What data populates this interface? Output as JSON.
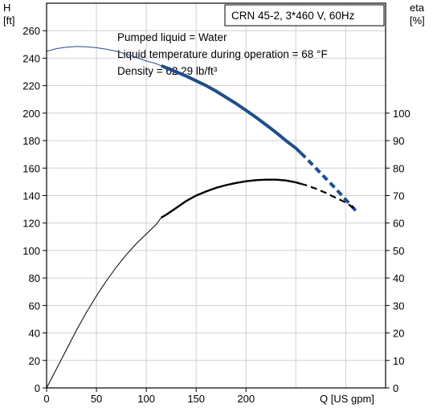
{
  "chart_data": {
    "type": "line",
    "left_axis": {
      "symbol": "H",
      "unit": "[ft]",
      "range": [
        0,
        280
      ],
      "ticks": [
        0,
        20,
        40,
        60,
        80,
        100,
        120,
        140,
        160,
        180,
        200,
        220,
        240,
        260
      ]
    },
    "right_axis": {
      "symbol": "eta",
      "unit": "[%]",
      "range": [
        0,
        140
      ],
      "ticks": [
        0,
        10,
        20,
        30,
        40,
        50,
        60,
        70,
        80,
        90,
        100
      ]
    },
    "x_axis": {
      "label": "Q [US gpm]",
      "range": [
        0,
        340
      ],
      "ticks": [
        0,
        50,
        100,
        150,
        200
      ]
    },
    "grid": true,
    "title_box": "CRN 45-2, 3*460 V, 60Hz",
    "annotations": [
      "Pumped liquid = Water",
      "Liquid temperature during operation = 68 °F",
      "Density = 62.29 lb/ft³"
    ],
    "series": [
      {
        "axis": "left",
        "color": "#1f4e8c",
        "thin_end_x": 115,
        "dash_start_x": 255,
        "x": [
          0,
          10,
          20,
          30,
          40,
          50,
          60,
          70,
          80,
          90,
          100,
          110,
          115,
          120,
          130,
          140,
          150,
          160,
          170,
          180,
          190,
          200,
          210,
          220,
          230,
          240,
          250,
          255,
          260,
          270,
          280,
          290,
          300,
          310
        ],
        "y": [
          245,
          247,
          248,
          248.5,
          248.3,
          247.6,
          246.5,
          245,
          243,
          240.5,
          238,
          236,
          234.5,
          233,
          230,
          227,
          223.5,
          220,
          216,
          211.5,
          207,
          202,
          197,
          191.5,
          186,
          180,
          174.5,
          171,
          167.5,
          160,
          152.5,
          145,
          137,
          129
        ]
      },
      {
        "axis": "right",
        "color": "#000000",
        "thin_end_x": 115,
        "dash_start_x": 255,
        "x": [
          0,
          10,
          20,
          30,
          40,
          50,
          60,
          70,
          80,
          90,
          100,
          110,
          115,
          120,
          130,
          140,
          150,
          160,
          170,
          180,
          190,
          200,
          210,
          220,
          230,
          240,
          250,
          255,
          260,
          270,
          280,
          290,
          300,
          310
        ],
        "y": [
          0,
          7,
          14,
          21,
          27.5,
          33.5,
          39,
          44,
          48.5,
          52.5,
          56,
          59.5,
          62,
          63,
          65.5,
          68,
          70,
          71.5,
          72.8,
          73.8,
          74.6,
          75.2,
          75.6,
          75.8,
          75.8,
          75.5,
          74.8,
          74.3,
          73.8,
          72.5,
          71,
          69.2,
          67.5,
          65
        ]
      }
    ]
  }
}
